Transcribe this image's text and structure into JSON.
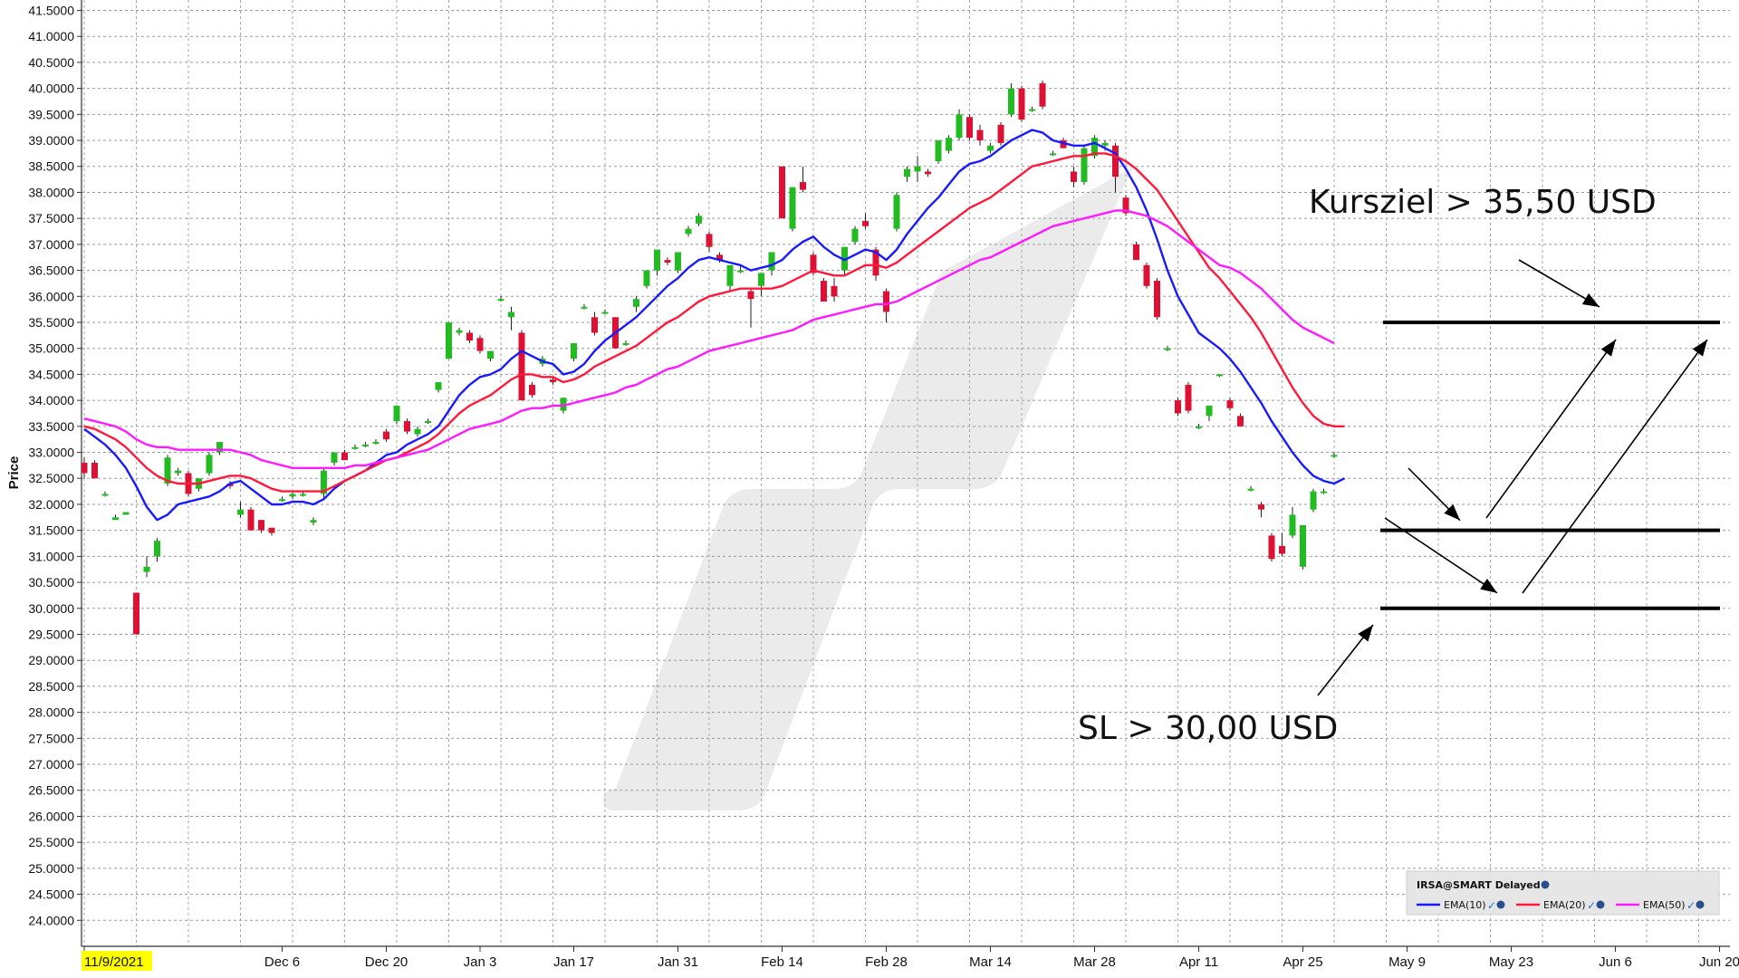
{
  "chart_data": {
    "type": "candlestick",
    "title": "",
    "ylabel": "Price",
    "xlabel": "",
    "ylim": [
      23.5,
      41.7
    ],
    "yticks": [
      "24.0000",
      "24.5000",
      "25.0000",
      "25.5000",
      "26.0000",
      "26.5000",
      "27.0000",
      "27.5000",
      "28.0000",
      "28.5000",
      "29.0000",
      "29.5000",
      "30.0000",
      "30.5000",
      "31.0000",
      "31.5000",
      "32.0000",
      "32.5000",
      "33.0000",
      "33.5000",
      "34.0000",
      "34.5000",
      "35.0000",
      "35.5000",
      "36.0000",
      "36.5000",
      "37.0000",
      "37.5000",
      "38.0000",
      "38.5000",
      "39.0000",
      "39.5000",
      "40.0000",
      "40.5000",
      "41.0000",
      "41.5000"
    ],
    "xticks": [
      {
        "label": "11/9/2021",
        "index": 0,
        "highlight": true
      },
      {
        "label": "Dec 6",
        "index": 19
      },
      {
        "label": "Dec 20",
        "index": 29
      },
      {
        "label": "Jan 3",
        "index": 38
      },
      {
        "label": "Jan 17",
        "index": 47
      },
      {
        "label": "Jan 31",
        "index": 57
      },
      {
        "label": "Feb 14",
        "index": 67
      },
      {
        "label": "Feb 28",
        "index": 77
      },
      {
        "label": "Mar 14",
        "index": 87
      },
      {
        "label": "Mar 28",
        "index": 97
      },
      {
        "label": "Apr 11",
        "index": 107
      },
      {
        "label": "Apr 25",
        "index": 117
      },
      {
        "label": "May 9",
        "index": 127
      },
      {
        "label": "May 23",
        "index": 137
      },
      {
        "label": "Jun 6",
        "index": 147
      },
      {
        "label": "Jun 20",
        "index": 157
      }
    ],
    "candles_ohlc": [
      [
        32.8,
        32.9,
        32.5,
        32.6
      ],
      [
        32.8,
        32.85,
        32.5,
        32.5
      ],
      [
        32.2,
        32.25,
        32.15,
        32.2
      ],
      [
        31.7,
        31.8,
        31.7,
        31.75
      ],
      [
        31.8,
        31.85,
        31.8,
        31.85
      ],
      [
        30.3,
        30.3,
        29.5,
        29.5
      ],
      [
        30.7,
        31.0,
        30.6,
        30.8
      ],
      [
        31.0,
        31.35,
        30.9,
        31.3
      ],
      [
        32.4,
        32.95,
        32.35,
        32.9
      ],
      [
        32.6,
        32.7,
        32.55,
        32.65
      ],
      [
        32.6,
        32.65,
        32.15,
        32.2
      ],
      [
        32.3,
        32.5,
        32.25,
        32.5
      ],
      [
        32.6,
        33.0,
        32.55,
        32.95
      ],
      [
        33.0,
        33.2,
        32.95,
        33.2
      ],
      [
        32.4,
        32.45,
        32.3,
        32.35
      ],
      [
        31.8,
        32.05,
        31.75,
        31.9
      ],
      [
        31.9,
        31.95,
        31.5,
        31.5
      ],
      [
        31.7,
        31.7,
        31.45,
        31.5
      ],
      [
        31.55,
        31.55,
        31.4,
        31.45
      ],
      [
        32.1,
        32.15,
        32.05,
        32.1
      ],
      [
        32.15,
        32.25,
        32.1,
        32.2
      ],
      [
        32.2,
        32.25,
        32.15,
        32.2
      ],
      [
        31.65,
        31.75,
        31.6,
        31.7
      ],
      [
        32.2,
        32.7,
        32.1,
        32.65
      ],
      [
        32.8,
        33.0,
        32.75,
        33.0
      ],
      [
        33.0,
        33.05,
        32.85,
        32.85
      ],
      [
        33.1,
        33.15,
        33.05,
        33.1
      ],
      [
        33.15,
        33.2,
        33.1,
        33.15
      ],
      [
        33.2,
        33.25,
        33.15,
        33.2
      ],
      [
        33.4,
        33.45,
        33.2,
        33.25
      ],
      [
        33.6,
        33.9,
        33.55,
        33.9
      ],
      [
        33.6,
        33.65,
        33.35,
        33.4
      ],
      [
        33.35,
        33.5,
        33.3,
        33.45
      ],
      [
        33.6,
        33.65,
        33.55,
        33.6
      ],
      [
        34.2,
        34.35,
        34.15,
        34.35
      ],
      [
        34.8,
        35.5,
        34.8,
        35.5
      ],
      [
        35.3,
        35.4,
        35.25,
        35.35
      ],
      [
        35.3,
        35.35,
        35.1,
        35.15
      ],
      [
        35.2,
        35.25,
        34.9,
        34.95
      ],
      [
        34.8,
        34.95,
        34.75,
        34.95
      ],
      [
        35.95,
        36.0,
        35.9,
        35.95
      ],
      [
        35.6,
        35.8,
        35.35,
        35.7
      ],
      [
        35.3,
        35.35,
        34.0,
        34.0
      ],
      [
        34.3,
        34.35,
        34.05,
        34.1
      ],
      [
        34.7,
        34.85,
        34.65,
        34.8
      ],
      [
        34.4,
        34.45,
        34.3,
        34.35
      ],
      [
        33.8,
        34.05,
        33.75,
        34.05
      ],
      [
        34.8,
        35.1,
        34.75,
        35.1
      ],
      [
        35.8,
        35.85,
        35.75,
        35.8
      ],
      [
        35.6,
        35.7,
        35.25,
        35.3
      ],
      [
        35.7,
        35.75,
        35.65,
        35.7
      ],
      [
        35.6,
        35.6,
        35.0,
        35.0
      ],
      [
        35.1,
        35.15,
        35.05,
        35.1
      ],
      [
        35.8,
        36.0,
        35.7,
        35.95
      ],
      [
        36.2,
        36.5,
        36.15,
        36.5
      ],
      [
        36.5,
        36.9,
        36.4,
        36.9
      ],
      [
        36.7,
        36.75,
        36.6,
        36.65
      ],
      [
        36.5,
        36.85,
        36.45,
        36.85
      ],
      [
        37.2,
        37.35,
        37.15,
        37.3
      ],
      [
        37.4,
        37.6,
        37.35,
        37.55
      ],
      [
        37.2,
        37.25,
        36.85,
        36.95
      ],
      [
        36.8,
        36.85,
        36.65,
        36.7
      ],
      [
        36.2,
        36.6,
        36.1,
        36.6
      ],
      [
        36.5,
        36.6,
        36.45,
        36.5
      ],
      [
        36.1,
        36.15,
        35.4,
        35.95
      ],
      [
        36.2,
        36.45,
        36.0,
        36.45
      ],
      [
        36.5,
        36.85,
        36.4,
        36.85
      ],
      [
        38.5,
        38.5,
        37.5,
        37.5
      ],
      [
        37.3,
        38.1,
        37.25,
        38.1
      ],
      [
        38.2,
        38.5,
        38.0,
        38.05
      ],
      [
        36.8,
        36.85,
        36.4,
        36.45
      ],
      [
        36.3,
        36.35,
        35.9,
        35.9
      ],
      [
        36.2,
        36.35,
        35.9,
        36.0
      ],
      [
        36.5,
        36.95,
        36.4,
        36.95
      ],
      [
        37.05,
        37.35,
        37.0,
        37.3
      ],
      [
        37.45,
        37.6,
        37.3,
        37.35
      ],
      [
        36.9,
        36.95,
        36.3,
        36.4
      ],
      [
        36.1,
        36.15,
        35.5,
        35.7
      ],
      [
        37.3,
        38.0,
        37.25,
        37.95
      ],
      [
        38.3,
        38.5,
        38.2,
        38.45
      ],
      [
        38.4,
        38.7,
        38.2,
        38.5
      ],
      [
        38.4,
        38.45,
        38.3,
        38.35
      ],
      [
        38.6,
        39.0,
        38.55,
        39.0
      ],
      [
        38.8,
        39.1,
        38.75,
        39.05
      ],
      [
        39.05,
        39.6,
        39.0,
        39.5
      ],
      [
        39.45,
        39.5,
        39.0,
        39.05
      ],
      [
        39.2,
        39.3,
        38.9,
        39.0
      ],
      [
        38.8,
        38.95,
        38.75,
        38.9
      ],
      [
        39.3,
        39.35,
        38.9,
        38.95
      ],
      [
        39.5,
        40.1,
        39.45,
        40.0
      ],
      [
        40.0,
        40.05,
        39.35,
        39.4
      ],
      [
        39.6,
        39.65,
        39.55,
        39.6
      ],
      [
        40.1,
        40.15,
        39.6,
        39.65
      ],
      [
        38.75,
        38.8,
        38.7,
        38.75
      ],
      [
        39.0,
        39.05,
        38.85,
        38.85
      ],
      [
        38.4,
        38.5,
        38.1,
        38.2
      ],
      [
        38.2,
        38.9,
        38.15,
        38.85
      ],
      [
        38.7,
        39.1,
        38.65,
        39.05
      ],
      [
        38.9,
        39.0,
        38.8,
        38.95
      ],
      [
        38.9,
        38.95,
        38.0,
        38.3
      ],
      [
        37.9,
        37.95,
        37.55,
        37.6
      ],
      [
        37.0,
        37.05,
        36.7,
        36.7
      ],
      [
        36.6,
        36.65,
        36.15,
        36.2
      ],
      [
        36.3,
        36.35,
        35.55,
        35.6
      ],
      [
        35.0,
        35.05,
        34.95,
        35.0
      ],
      [
        34.0,
        34.05,
        33.7,
        33.75
      ],
      [
        34.3,
        34.35,
        33.75,
        33.8
      ],
      [
        33.5,
        33.55,
        33.45,
        33.5
      ],
      [
        33.7,
        33.75,
        33.6,
        33.9
      ],
      [
        34.5,
        34.5,
        34.45,
        34.5
      ],
      [
        34.0,
        34.05,
        33.8,
        33.85
      ],
      [
        33.7,
        33.75,
        33.5,
        33.5
      ],
      [
        32.3,
        32.35,
        32.25,
        32.3
      ],
      [
        32.0,
        32.05,
        31.75,
        31.9
      ],
      [
        31.4,
        31.45,
        30.9,
        30.95
      ],
      [
        31.2,
        31.45,
        31.0,
        31.05
      ],
      [
        31.4,
        31.95,
        31.35,
        31.8
      ],
      [
        30.8,
        31.6,
        30.75,
        31.6
      ],
      [
        31.9,
        32.3,
        31.85,
        32.25
      ],
      [
        32.25,
        32.3,
        32.2,
        32.25
      ],
      [
        32.95,
        33.0,
        32.9,
        32.95
      ]
    ],
    "series": [
      {
        "name": "EMA(10)",
        "color": "#1a1aff",
        "values": [
          33.45,
          33.3,
          33.15,
          32.95,
          32.7,
          32.35,
          31.95,
          31.7,
          31.8,
          32.0,
          32.05,
          32.1,
          32.15,
          32.25,
          32.4,
          32.45,
          32.3,
          32.15,
          32.0,
          32.0,
          32.05,
          32.05,
          32.0,
          32.1,
          32.3,
          32.45,
          32.55,
          32.65,
          32.8,
          32.95,
          33.0,
          33.15,
          33.25,
          33.35,
          33.5,
          33.8,
          34.1,
          34.3,
          34.45,
          34.5,
          34.6,
          34.8,
          34.95,
          34.85,
          34.75,
          34.7,
          34.5,
          34.55,
          34.7,
          34.95,
          35.15,
          35.3,
          35.45,
          35.6,
          35.8,
          36.0,
          36.2,
          36.35,
          36.55,
          36.7,
          36.75,
          36.7,
          36.65,
          36.6,
          36.5,
          36.55,
          36.6,
          36.7,
          36.9,
          37.05,
          37.15,
          36.95,
          36.8,
          36.7,
          36.8,
          36.9,
          36.85,
          36.7,
          36.9,
          37.2,
          37.45,
          37.7,
          37.9,
          38.15,
          38.4,
          38.55,
          38.6,
          38.7,
          38.85,
          39.0,
          39.1,
          39.2,
          39.15,
          39.0,
          38.95,
          38.9,
          38.9,
          38.95,
          38.85,
          38.75,
          38.45,
          38.1,
          37.65,
          37.1,
          36.5,
          36.0,
          35.65,
          35.3,
          35.15,
          35.0,
          34.8,
          34.55,
          34.25,
          33.95,
          33.6,
          33.3,
          33.0,
          32.75,
          32.55,
          32.45,
          32.4,
          32.5
        ]
      },
      {
        "name": "EMA(20)",
        "color": "#ff1a3c",
        "values": [
          33.5,
          33.45,
          33.35,
          33.25,
          33.1,
          32.9,
          32.7,
          32.55,
          32.45,
          32.4,
          32.4,
          32.4,
          32.45,
          32.5,
          32.55,
          32.55,
          32.5,
          32.4,
          32.3,
          32.25,
          32.25,
          32.25,
          32.25,
          32.25,
          32.35,
          32.45,
          32.55,
          32.65,
          32.75,
          32.85,
          32.9,
          33.0,
          33.1,
          33.2,
          33.35,
          33.55,
          33.75,
          33.9,
          34.0,
          34.1,
          34.25,
          34.4,
          34.5,
          34.5,
          34.45,
          34.45,
          34.35,
          34.4,
          34.5,
          34.65,
          34.75,
          34.85,
          34.95,
          35.05,
          35.2,
          35.35,
          35.5,
          35.6,
          35.75,
          35.9,
          36.0,
          36.05,
          36.1,
          36.15,
          36.15,
          36.15,
          36.15,
          36.2,
          36.3,
          36.4,
          36.5,
          36.45,
          36.4,
          36.4,
          36.5,
          36.6,
          36.6,
          36.55,
          36.65,
          36.8,
          36.95,
          37.1,
          37.25,
          37.4,
          37.55,
          37.7,
          37.8,
          37.9,
          38.05,
          38.2,
          38.35,
          38.5,
          38.55,
          38.6,
          38.65,
          38.7,
          38.7,
          38.75,
          38.75,
          38.7,
          38.6,
          38.45,
          38.25,
          38.05,
          37.75,
          37.45,
          37.15,
          36.85,
          36.55,
          36.35,
          36.1,
          35.85,
          35.6,
          35.3,
          34.95,
          34.6,
          34.25,
          33.95,
          33.7,
          33.55,
          33.5,
          33.5
        ]
      },
      {
        "name": "EMA(50)",
        "color": "#ff1aff",
        "values": [
          33.65,
          33.6,
          33.55,
          33.5,
          33.4,
          33.25,
          33.15,
          33.1,
          33.1,
          33.05,
          33.05,
          33.05,
          33.05,
          33.05,
          33.05,
          33.0,
          32.95,
          32.85,
          32.8,
          32.75,
          32.7,
          32.7,
          32.7,
          32.7,
          32.7,
          32.7,
          32.75,
          32.75,
          32.8,
          32.85,
          32.9,
          32.95,
          33.0,
          33.05,
          33.15,
          33.25,
          33.35,
          33.45,
          33.5,
          33.55,
          33.6,
          33.7,
          33.8,
          33.85,
          33.85,
          33.9,
          33.9,
          33.95,
          34.0,
          34.05,
          34.1,
          34.15,
          34.25,
          34.3,
          34.4,
          34.5,
          34.6,
          34.65,
          34.75,
          34.85,
          34.95,
          35.0,
          35.05,
          35.1,
          35.15,
          35.2,
          35.25,
          35.3,
          35.35,
          35.45,
          35.55,
          35.6,
          35.65,
          35.7,
          35.75,
          35.8,
          35.85,
          35.85,
          35.9,
          36.0,
          36.1,
          36.2,
          36.3,
          36.4,
          36.5,
          36.6,
          36.7,
          36.75,
          36.85,
          36.95,
          37.05,
          37.15,
          37.25,
          37.35,
          37.4,
          37.45,
          37.5,
          37.55,
          37.6,
          37.65,
          37.65,
          37.6,
          37.55,
          37.45,
          37.35,
          37.2,
          37.05,
          36.9,
          36.75,
          36.6,
          36.55,
          36.45,
          36.3,
          36.15,
          35.95,
          35.75,
          35.55,
          35.4,
          35.3,
          35.2,
          35.1
        ]
      }
    ],
    "horizontal_levels": [
      35.5,
      31.5,
      30.0
    ],
    "annotations": {
      "target": "Kursziel > 35,50 USD",
      "stop": "SL > 30,00 USD"
    },
    "legend": {
      "header": "IRSA@SMART Delayed",
      "items": [
        "EMA(10)",
        "EMA(20)",
        "EMA(50)"
      ],
      "placement": "bottom-right"
    },
    "grid": true,
    "up_color": "#22bb22",
    "down_color": "#dd1133"
  }
}
